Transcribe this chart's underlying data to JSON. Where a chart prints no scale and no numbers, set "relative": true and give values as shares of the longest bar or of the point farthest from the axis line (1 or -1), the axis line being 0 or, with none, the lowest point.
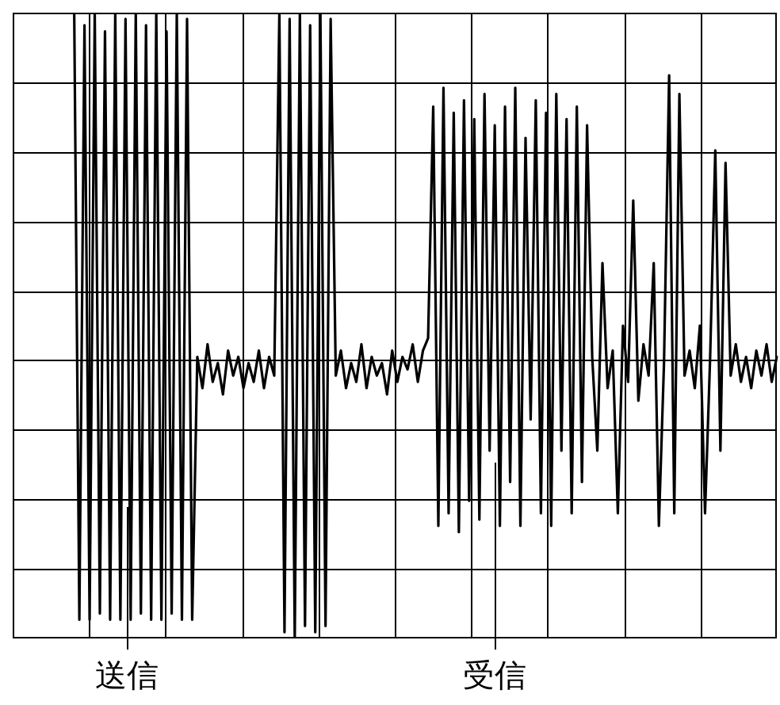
{
  "chart_data": {
    "type": "line",
    "relative": true,
    "grid": true,
    "legend": false,
    "marker": "none",
    "line_style": "solid",
    "categories": [
      null,
      null,
      null,
      null,
      null,
      null,
      null,
      null,
      null,
      null,
      null,
      null,
      null,
      null,
      null,
      null,
      null,
      null,
      null,
      null,
      null,
      null,
      null,
      null,
      null,
      null,
      null,
      null,
      null,
      null,
      null,
      null,
      null,
      null,
      null,
      null,
      null,
      null,
      null,
      null,
      null,
      null,
      null,
      null,
      null,
      null,
      null,
      null,
      null,
      null,
      null,
      null,
      null,
      null,
      null,
      null,
      null,
      null,
      null,
      null,
      null,
      null,
      null,
      null,
      null,
      null,
      null,
      null,
      null,
      null,
      null,
      null,
      null,
      null,
      null,
      null,
      null,
      null,
      null,
      null,
      null,
      null,
      null,
      null,
      null,
      null,
      null,
      null,
      null,
      null,
      null,
      null,
      null,
      null,
      null,
      null,
      null,
      null,
      null,
      null,
      null,
      null,
      null,
      null,
      null,
      null,
      null,
      null,
      null,
      null,
      null,
      null,
      null,
      null,
      null,
      null,
      null,
      null,
      null,
      null,
      null,
      null,
      null,
      null,
      null,
      null,
      null,
      null,
      null,
      null,
      null,
      null,
      null,
      null,
      null,
      null,
      null,
      null,
      null,
      null,
      null,
      null,
      null,
      null,
      null,
      null,
      null,
      null,
      null,
      null
    ],
    "series": [
      {
        "color": "#000000",
        "values": [
          null,
          null,
          null,
          null,
          null,
          null,
          null,
          null,
          null,
          null,
          null,
          null,
          1,
          0.03,
          0.98,
          0.03,
          1,
          0.04,
          0.97,
          0.03,
          1,
          0.03,
          0.99,
          0.03,
          1,
          0.04,
          0.98,
          0.03,
          1,
          0.03,
          0.97,
          0.04,
          1,
          0.03,
          0.99,
          0.03,
          0.45,
          0.4,
          0.47,
          0.41,
          0.44,
          0.39,
          0.46,
          0.42,
          0.45,
          0.4,
          0.44,
          0.41,
          0.46,
          0.4,
          0.45,
          0.42,
          1,
          0.01,
          0.99,
          0,
          1,
          0.02,
          0.98,
          0.01,
          1,
          0.02,
          0.99,
          0.42,
          0.46,
          0.4,
          0.44,
          0.41,
          0.47,
          0.4,
          0.45,
          0.42,
          0.44,
          0.39,
          0.46,
          0.41,
          0.45,
          0.43,
          0.47,
          0.41,
          0.46,
          0.48,
          0.85,
          0.18,
          0.88,
          0.2,
          0.84,
          0.17,
          0.86,
          0.22,
          0.83,
          0.19,
          0.87,
          0.3,
          0.82,
          0.18,
          0.85,
          0.25,
          0.88,
          0.18,
          0.8,
          0.35,
          0.86,
          0.2,
          0.84,
          0.18,
          0.87,
          0.3,
          0.83,
          0.2,
          0.85,
          0.25,
          0.82,
          0.45,
          0.3,
          0.6,
          0.4,
          0.46,
          0.2,
          0.5,
          0.41,
          0.7,
          0.38,
          0.47,
          0.42,
          0.6,
          0.18,
          0.44,
          0.9,
          0.2,
          0.87,
          0.42,
          0.46,
          0.4,
          0.5,
          0.2,
          0.45,
          0.78,
          0.3,
          0.76,
          0.42,
          0.47,
          0.41,
          0.45,
          0.4,
          0.46,
          0.42,
          0.47,
          0.41,
          0.45
        ]
      }
    ],
    "annotations": [
      "送信",
      "受信"
    ]
  }
}
